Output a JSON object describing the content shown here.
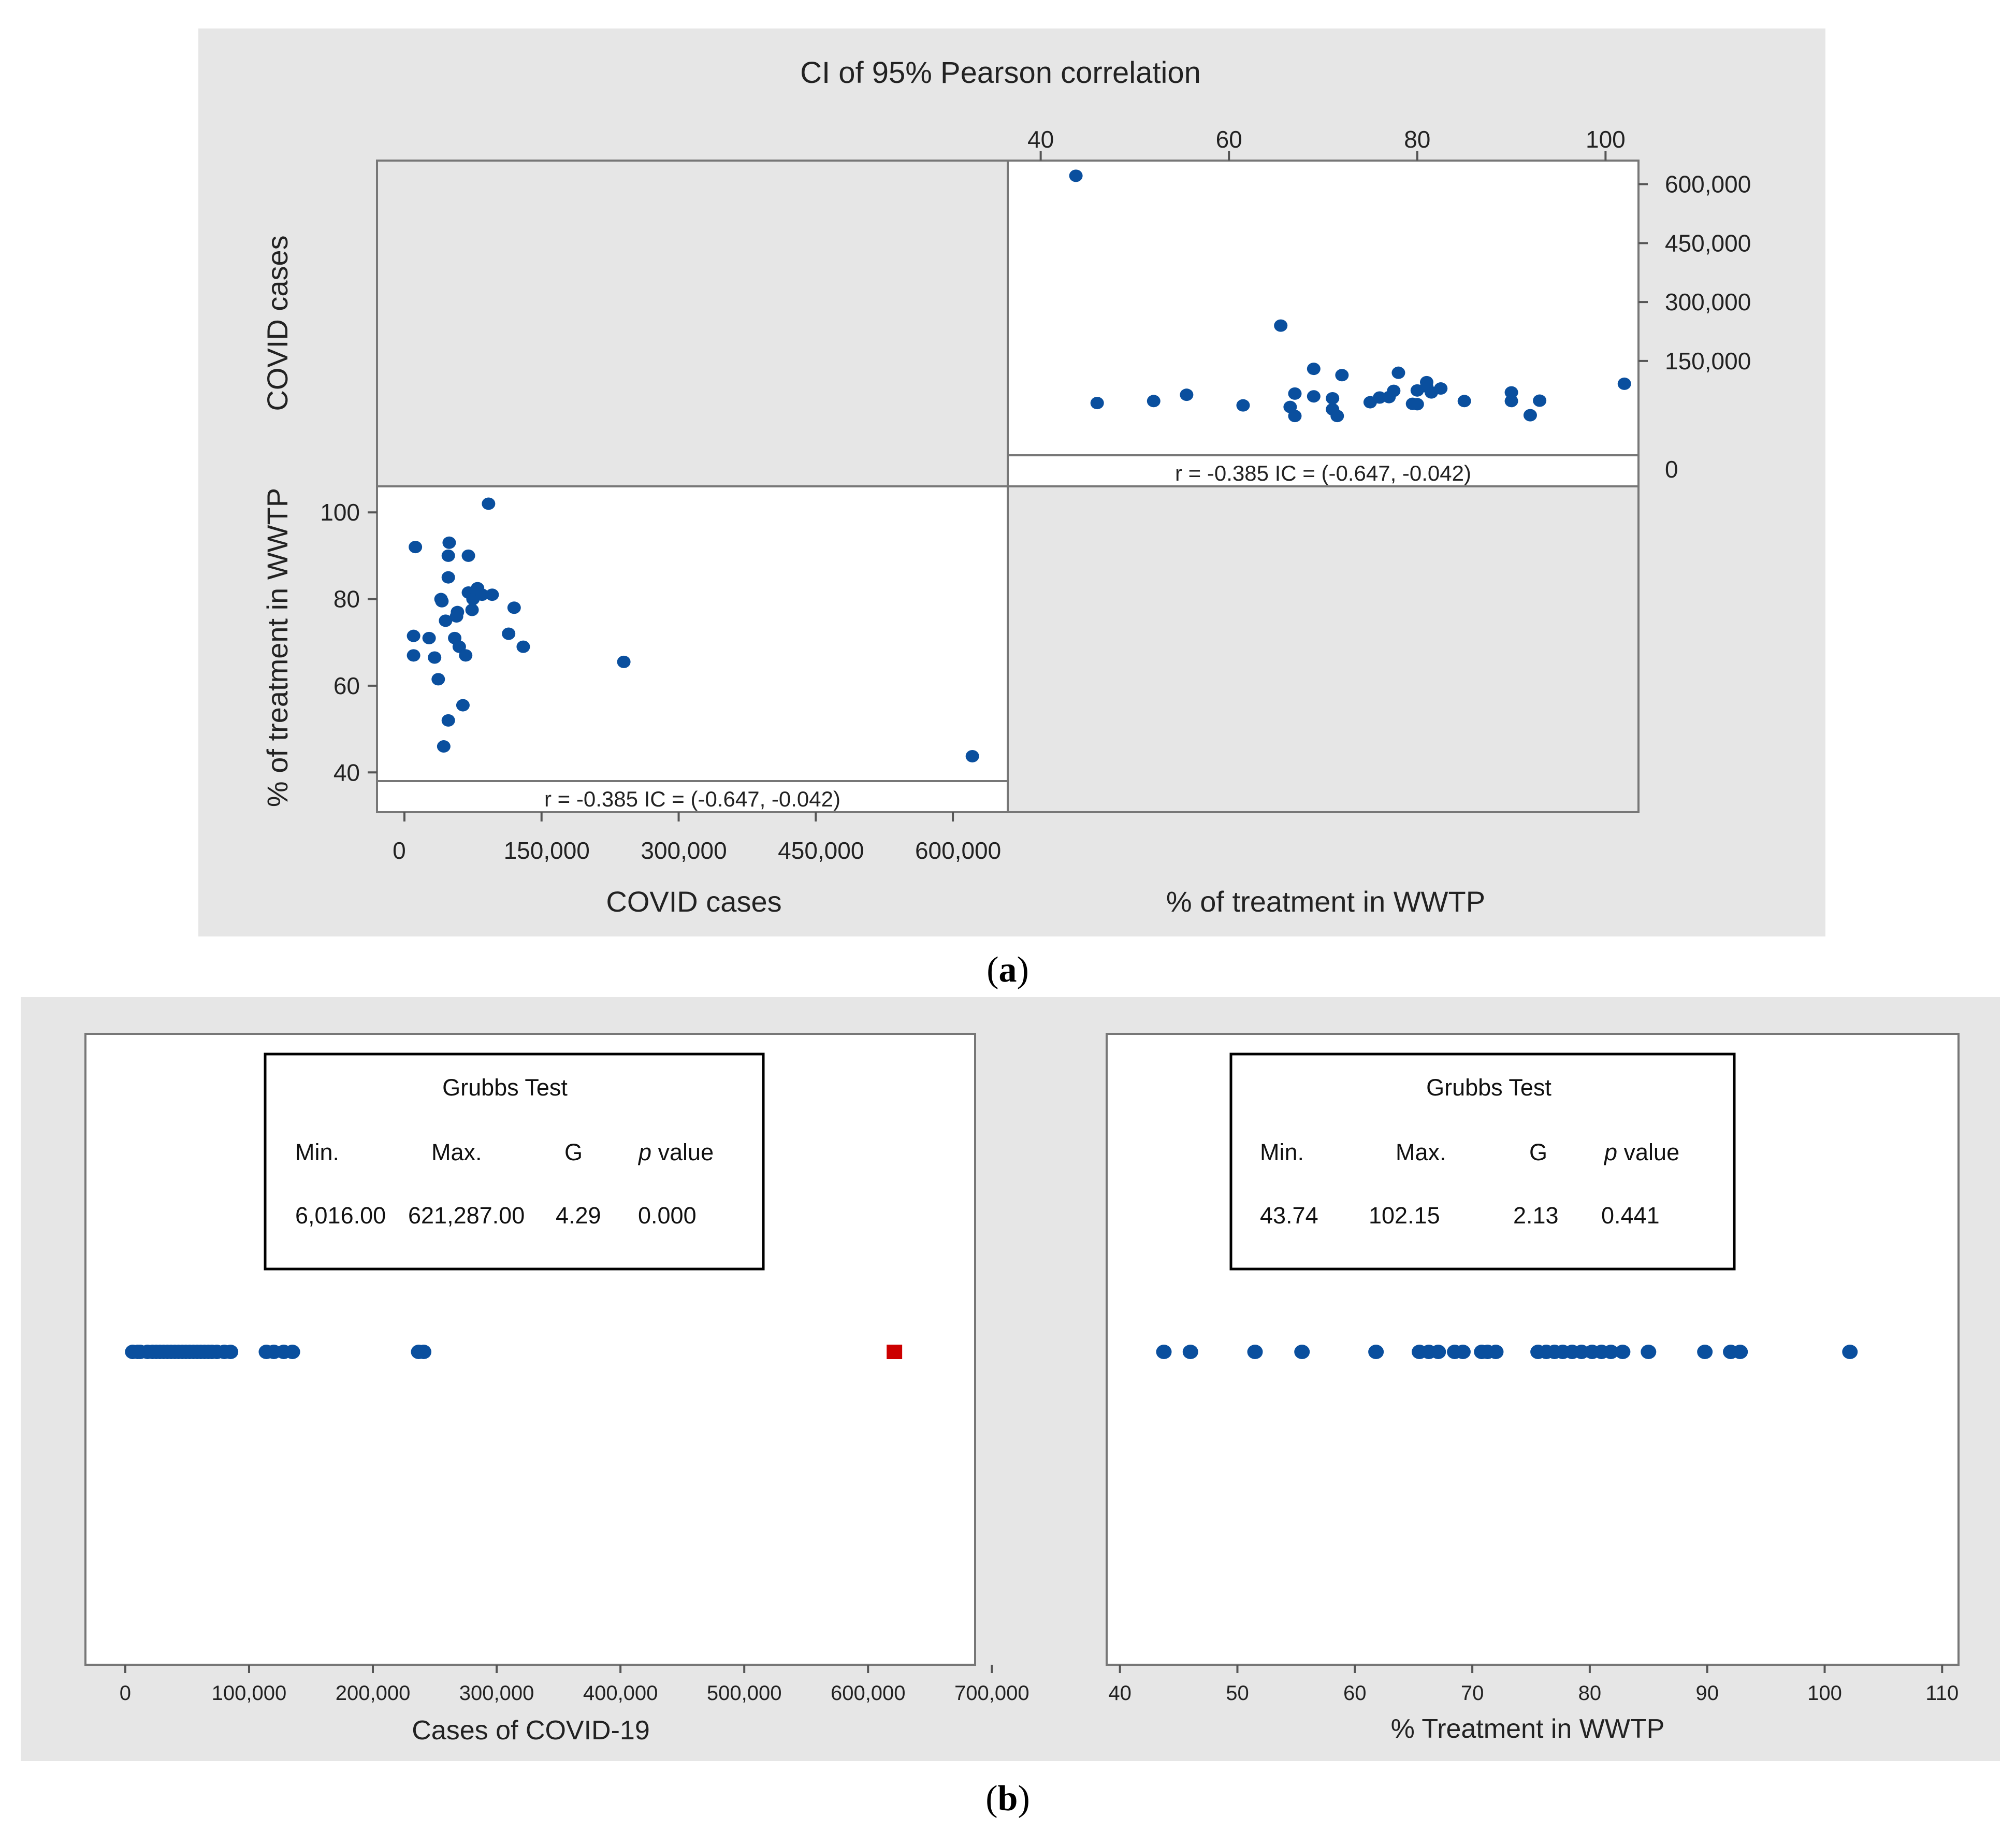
{
  "figure": {
    "caption_a": "(a)",
    "caption_a_letter": "a",
    "caption_b": "(b)",
    "caption_b_letter": "b"
  },
  "colors": {
    "panel_bg": "#e6e6e6",
    "plot_bg": "#ffffff",
    "point": "#0a4f9e",
    "outlier": "#cc0000",
    "axis": "#333333",
    "text": "#111111"
  },
  "chart_data": [
    {
      "type": "scatter",
      "title": "CI of 95% Pearson correlation",
      "subtype": "scatterplot-matrix",
      "var1": "COVID cases",
      "var2": "% of treatment in WWTP",
      "xlabel_bottom": "COVID cases",
      "xlabel_bottom_right": "% of treatment in WWTP",
      "ylabel_top": "COVID cases",
      "ylabel_bottom": "% of treatment in WWTP",
      "cases_ticks": [
        0,
        150000,
        300000,
        450000,
        600000
      ],
      "cases_tick_labels": [
        "0",
        "150,000",
        "300,000",
        "450,000",
        "600,000"
      ],
      "pct_ticks": [
        40,
        60,
        80,
        100
      ],
      "pct_tick_labels": [
        "40",
        "60",
        "80",
        "100"
      ],
      "cases_range": [
        -30000,
        660000
      ],
      "pct_range": [
        38,
        106
      ],
      "correlation_label_lower": "r = -0.385  IC = (-0.647, -0.042)",
      "correlation_label_upper": "r = -0.385  IC = (-0.647, -0.042)",
      "points_cases_vs_pct": [
        [
          12000,
          92
        ],
        [
          10000,
          71.5
        ],
        [
          10000,
          67
        ],
        [
          27000,
          71
        ],
        [
          33000,
          66.5
        ],
        [
          37000,
          61.5
        ],
        [
          40000,
          80
        ],
        [
          41000,
          79.5
        ],
        [
          43000,
          46
        ],
        [
          45000,
          75
        ],
        [
          48000,
          52
        ],
        [
          49000,
          93
        ],
        [
          48000,
          90
        ],
        [
          48000,
          85
        ],
        [
          55000,
          71
        ],
        [
          57000,
          76
        ],
        [
          58000,
          77
        ],
        [
          60000,
          69
        ],
        [
          64000,
          55.5
        ],
        [
          67000,
          67
        ],
        [
          70000,
          90
        ],
        [
          70000,
          81.5
        ],
        [
          74000,
          77.5
        ],
        [
          75000,
          80
        ],
        [
          80000,
          82.5
        ],
        [
          85000,
          81
        ],
        [
          92000,
          102
        ],
        [
          96000,
          81
        ],
        [
          114000,
          72
        ],
        [
          120000,
          78
        ],
        [
          130000,
          69
        ],
        [
          240000,
          65.5
        ],
        [
          621287,
          43.74
        ]
      ]
    },
    {
      "type": "scatter",
      "title": "Grubbs Test",
      "subtype": "individual-value-plot",
      "xlabel": "Cases of COVID-19",
      "x_ticks": [
        0,
        100000,
        200000,
        300000,
        400000,
        500000,
        600000,
        700000
      ],
      "x_tick_labels": [
        "0",
        "100,000",
        "200,000",
        "300,000",
        "400,000",
        "500,000",
        "600,000",
        "700,000"
      ],
      "xlim": [
        -10000,
        712000
      ],
      "values": [
        6016,
        10000,
        12000,
        18000,
        22000,
        25000,
        28000,
        31000,
        34000,
        37000,
        40000,
        43000,
        46000,
        49000,
        52000,
        55000,
        58000,
        61000,
        64000,
        67000,
        70000,
        74000,
        80000,
        85000,
        114000,
        120000,
        128000,
        135000,
        237000,
        241000
      ],
      "outliers": [
        621287
      ],
      "stats_headers": {
        "min": "Min.",
        "max": "Max.",
        "g": "G",
        "p_italic": "p",
        "p_rest": " value"
      },
      "stats_values": {
        "min": "6,016.00",
        "max": "621,287.00",
        "g": "4.29",
        "p": "0.000"
      }
    },
    {
      "type": "scatter",
      "title": "Grubbs Test",
      "subtype": "individual-value-plot",
      "xlabel": "% Treatment in WWTP",
      "x_ticks": [
        40,
        50,
        60,
        70,
        80,
        90,
        100,
        110
      ],
      "x_tick_labels": [
        "40",
        "50",
        "60",
        "70",
        "80",
        "90",
        "100",
        "110"
      ],
      "xlim": [
        39,
        111
      ],
      "values": [
        43.74,
        46,
        51.5,
        55.5,
        61.8,
        65.5,
        66.3,
        67.1,
        68.5,
        69.2,
        70.8,
        71.3,
        72,
        75.6,
        76.3,
        77,
        77.7,
        78.5,
        79.3,
        80.2,
        81,
        81.8,
        82.8,
        85,
        89.8,
        92,
        92.8,
        102.15
      ],
      "outliers": [],
      "stats_headers": {
        "min": "Min.",
        "max": "Max.",
        "g": "G",
        "p_italic": "p",
        "p_rest": " value"
      },
      "stats_values": {
        "min": "43.74",
        "max": "102.15",
        "g": "2.13",
        "p": "0.441"
      }
    }
  ]
}
